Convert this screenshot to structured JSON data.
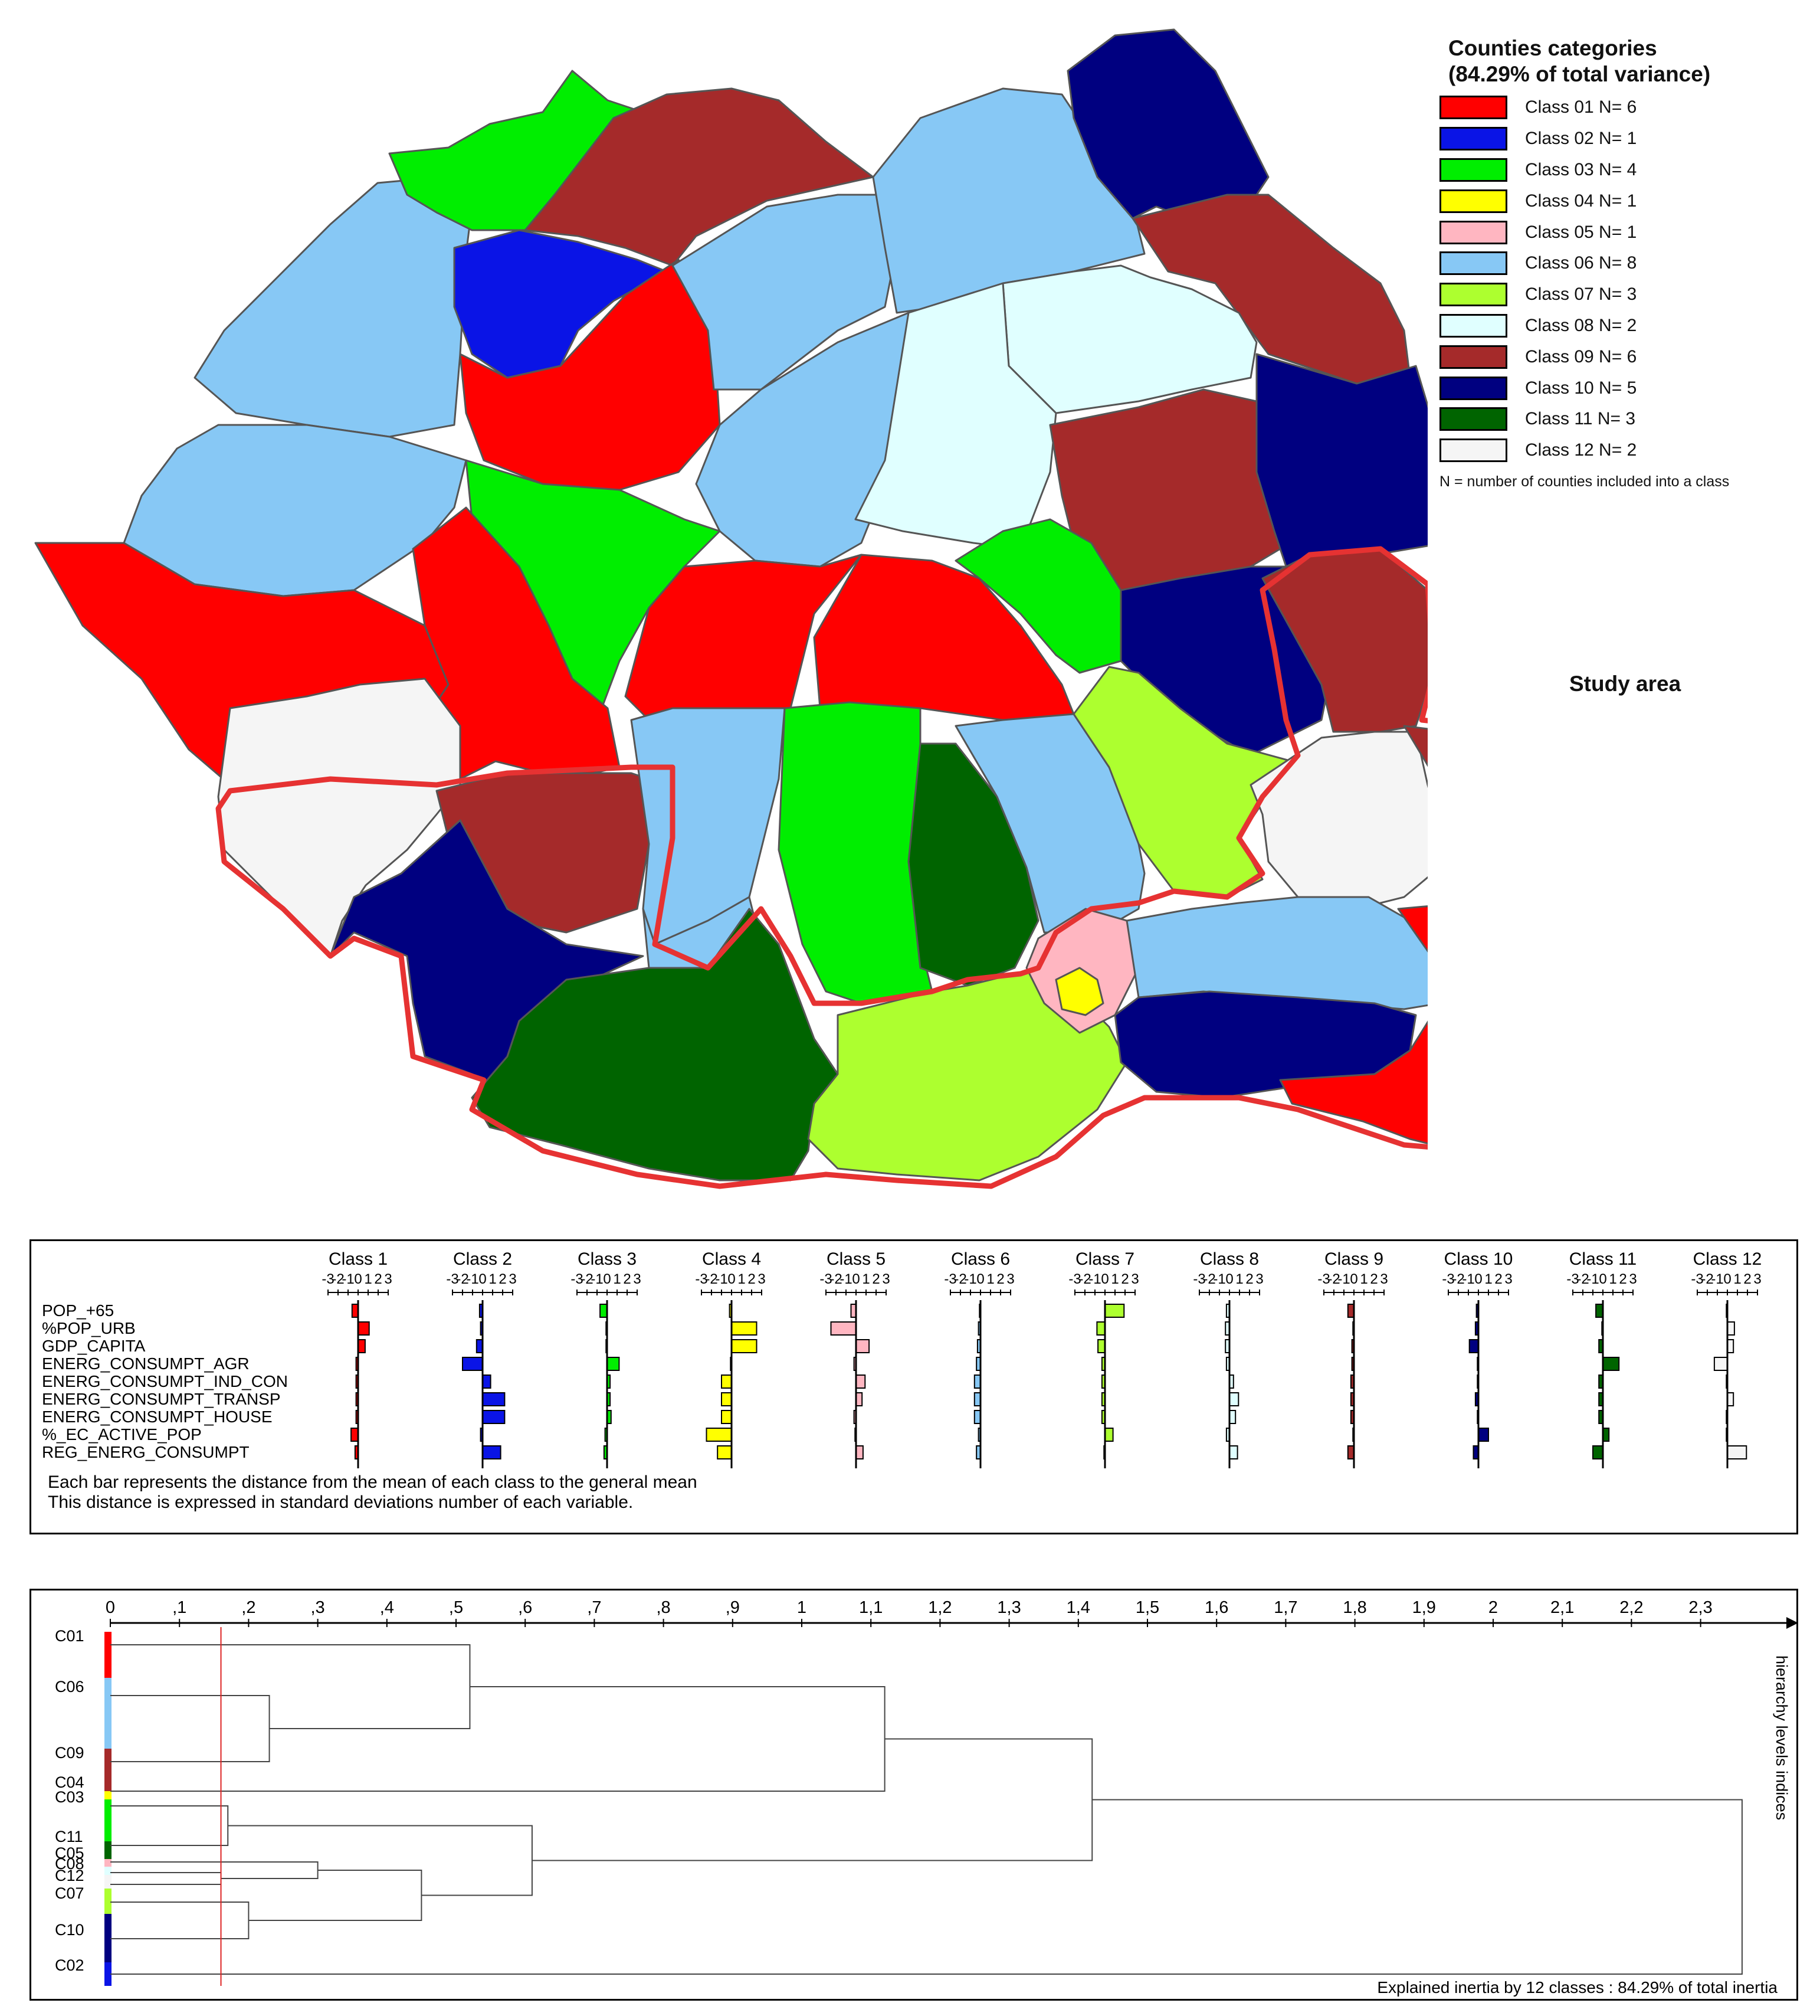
{
  "legend": {
    "title_line1": "Counties categories",
    "title_line2": "(84.29% of total variance)",
    "classes": [
      {
        "label": "Class 01 N= 6",
        "n": 6,
        "color": "#ff0000"
      },
      {
        "label": "Class 02 N= 1",
        "n": 1,
        "color": "#0a14e6"
      },
      {
        "label": "Class 03 N= 4",
        "n": 4,
        "color": "#00ee00"
      },
      {
        "label": "Class 04 N= 1",
        "n": 1,
        "color": "#ffff00"
      },
      {
        "label": "Class 05 N= 1",
        "n": 1,
        "color": "#ffb6c1"
      },
      {
        "label": "Class 06 N= 8",
        "n": 8,
        "color": "#87c8f5"
      },
      {
        "label": "Class 07 N= 3",
        "n": 3,
        "color": "#adff2f"
      },
      {
        "label": "Class 08 N= 2",
        "n": 2,
        "color": "#e0ffff"
      },
      {
        "label": "Class 09 N= 6",
        "n": 6,
        "color": "#a52a2a"
      },
      {
        "label": "Class 10 N= 5",
        "n": 5,
        "color": "#000080"
      },
      {
        "label": "Class 11 N= 3",
        "n": 3,
        "color": "#006400"
      },
      {
        "label": "Class 12 N= 2",
        "n": 2,
        "color": "#f5f5f5"
      }
    ],
    "note": "N = number of counties included into a class",
    "study_area_label": "Study area",
    "study_area_color": "#e63232"
  },
  "profiles": {
    "axis_ticks": [
      "-3",
      "-2",
      "-1",
      "0",
      "1",
      "2",
      "3"
    ],
    "variables": [
      "POP_+65",
      "%POP_URB",
      "GDP_CAPITA",
      "ENERG_CONSUMPT_AGR",
      "ENERG_CONSUMPT_IND_CON",
      "ENERG_CONSUMPT_TRANSP",
      "ENERG_CONSUMPT_HOUSE",
      "%_EC_ACTIVE_POP",
      "REG_ENERG_CONSUMPT"
    ],
    "classes": [
      {
        "name": "Class 1",
        "color": "#ff0000",
        "values": [
          -0.6,
          1.1,
          0.7,
          -0.2,
          -0.2,
          -0.2,
          -0.2,
          -0.7,
          -0.3
        ]
      },
      {
        "name": "Class 2",
        "color": "#0a14e6",
        "values": [
          -0.3,
          -0.2,
          -0.6,
          -2.0,
          0.8,
          2.2,
          2.2,
          -0.2,
          1.8
        ]
      },
      {
        "name": "Class 3",
        "color": "#00ee00",
        "values": [
          -0.7,
          -0.1,
          -0.1,
          1.2,
          0.3,
          0.3,
          0.4,
          -0.2,
          -0.3
        ]
      },
      {
        "name": "Class 4",
        "color": "#ffff00",
        "values": [
          -0.2,
          2.5,
          2.5,
          -0.1,
          -1.0,
          -1.0,
          -1.0,
          -2.5,
          -1.4
        ]
      },
      {
        "name": "Class 5",
        "color": "#ffb6c1",
        "values": [
          -0.5,
          -2.5,
          1.3,
          -0.2,
          0.9,
          0.6,
          -0.2,
          -0.1,
          0.7
        ]
      },
      {
        "name": "Class 6",
        "color": "#87c8f5",
        "values": [
          -0.1,
          -0.2,
          -0.3,
          -0.4,
          -0.6,
          -0.6,
          -0.6,
          -0.2,
          -0.4
        ]
      },
      {
        "name": "Class 7",
        "color": "#adff2f",
        "values": [
          1.9,
          -0.8,
          -0.7,
          -0.3,
          -0.3,
          -0.3,
          -0.3,
          0.8,
          -0.1
        ]
      },
      {
        "name": "Class 8",
        "color": "#e0ffff",
        "values": [
          -0.3,
          -0.4,
          -0.4,
          -0.3,
          0.4,
          0.9,
          0.6,
          -0.3,
          0.8
        ]
      },
      {
        "name": "Class 9",
        "color": "#a52a2a",
        "values": [
          -0.6,
          -0.1,
          -0.2,
          -0.2,
          -0.3,
          -0.3,
          -0.3,
          -0.1,
          -0.6
        ]
      },
      {
        "name": "Class 10",
        "color": "#000080",
        "values": [
          -0.2,
          -0.3,
          -0.9,
          -0.1,
          -0.1,
          -0.3,
          -0.1,
          1.0,
          -0.5
        ]
      },
      {
        "name": "Class 11",
        "color": "#006400",
        "values": [
          -0.7,
          -0.1,
          -0.4,
          1.6,
          -0.4,
          -0.4,
          -0.4,
          0.6,
          -1.0
        ]
      },
      {
        "name": "Class 12",
        "color": "#f5f5f5",
        "values": [
          -0.1,
          0.7,
          0.6,
          -1.3,
          -0.1,
          0.6,
          -0.1,
          -0.1,
          1.9
        ]
      }
    ],
    "footnote_line1": "Each bar represents the distance from the mean of each class to the general mean",
    "footnote_line2": "This distance is expressed in standard deviations number of each variable."
  },
  "dendrogram": {
    "axis_ticks": [
      "0",
      ",1",
      ",2",
      ",3",
      ",4",
      ",5",
      ",6",
      ",7",
      ",8",
      ",9",
      "1",
      "1,1",
      "1,2",
      "1,3",
      "1,4",
      "1,5",
      "1,6",
      "1,7",
      "1,8",
      "1,9",
      "2",
      "2,1",
      "2,2",
      "2,3"
    ],
    "cut_level": 0.16,
    "leaves": [
      {
        "label": "C01",
        "color": "#ff0000"
      },
      {
        "label": "C06",
        "color": "#87c8f5"
      },
      {
        "label": "C09",
        "color": "#a52a2a"
      },
      {
        "label": "C04",
        "color": "#ffff00"
      },
      {
        "label": "C03",
        "color": "#00ee00"
      },
      {
        "label": "C11",
        "color": "#006400"
      },
      {
        "label": "C05",
        "color": "#ffb6c1"
      },
      {
        "label": "C08",
        "color": "#e0ffff"
      },
      {
        "label": "C12",
        "color": "#f5f5f5"
      },
      {
        "label": "C07",
        "color": "#adff2f"
      },
      {
        "label": "C10",
        "color": "#000080"
      },
      {
        "label": "C02",
        "color": "#0a14e6"
      }
    ],
    "merge_levels": [
      0.52,
      0.23,
      1.12,
      1.42,
      0.17,
      0.61,
      0.3,
      0.16,
      0.45,
      0.2,
      2.36
    ],
    "side_label": "hierarchy levels indices",
    "footer": "Explained inertia by 12 classes : 84.29% of total inertia"
  }
}
